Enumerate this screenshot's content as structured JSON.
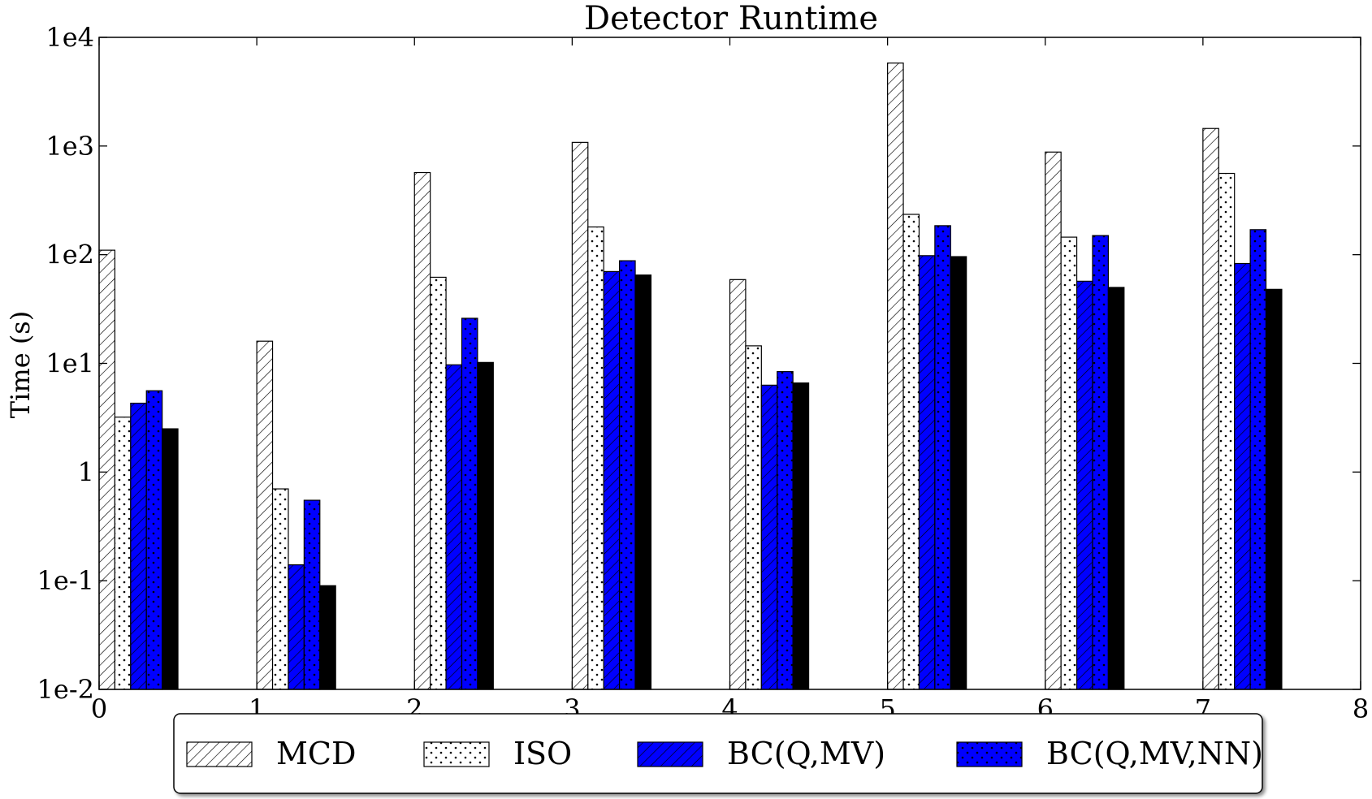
{
  "chart_data": {
    "type": "bar",
    "title": "Detector Runtime",
    "xlabel": "",
    "ylabel": "Time (s)",
    "yscale": "log",
    "ylim": [
      0.01,
      10000
    ],
    "xlim": [
      0,
      8
    ],
    "yticks": [
      0.01,
      0.1,
      1,
      10,
      100,
      1000,
      10000
    ],
    "ytick_labels": [
      "1e-2",
      "1e-1",
      "1",
      "1e1",
      "1e2",
      "1e3",
      "1e4"
    ],
    "xticks": [
      0,
      1,
      2,
      3,
      4,
      5,
      6,
      7,
      8
    ],
    "xtick_labels": [
      "0",
      "1",
      "2",
      "3",
      "4",
      "5",
      "6",
      "7",
      "8"
    ],
    "grid": false,
    "legend_position": "bottom",
    "x": [
      0,
      1,
      2,
      3,
      4,
      5,
      6,
      7
    ],
    "series": [
      {
        "name": "MCD",
        "color": "#ffffff",
        "pattern": "diagonal-hatch",
        "values": [
          110,
          16,
          570,
          1080,
          59,
          5800,
          880,
          1450
        ]
      },
      {
        "name": "ISO",
        "color": "#ffffff",
        "pattern": "dots",
        "values": [
          3.2,
          0.7,
          62,
          180,
          14.5,
          235,
          145,
          560
        ]
      },
      {
        "name": "BC(Q,MV)",
        "color": "#0000ff",
        "pattern": "diagonal-hatch",
        "values": [
          4.3,
          0.14,
          9.7,
          70,
          6.3,
          98,
          57,
          83
        ]
      },
      {
        "name": "BC(Q,MV,NN)",
        "color": "#0000ff",
        "pattern": "dots",
        "values": [
          5.6,
          0.55,
          26,
          88,
          8.4,
          185,
          150,
          170
        ]
      },
      {
        "name": "",
        "color": "#000000",
        "pattern": "solid",
        "values": [
          2.5,
          0.09,
          10.2,
          65,
          6.6,
          96,
          50,
          48
        ]
      }
    ]
  }
}
